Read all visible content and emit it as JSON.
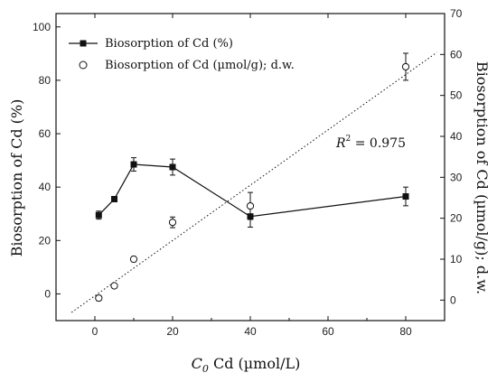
{
  "chart_data": {
    "type": "line",
    "xlabel_italic": "C",
    "xlabel_sub": "0",
    "xlabel_rest": " Cd (µmol/L)",
    "ylabel_left": "Biosorption of Cd (%)",
    "ylabel_right": "Biosorption of Cd (µmol/g); d.w.",
    "xlim": [
      -10,
      90
    ],
    "ylim_left": [
      -10,
      105
    ],
    "ylim_right": [
      -5,
      70
    ],
    "xticks": [
      0,
      20,
      40,
      60,
      80
    ],
    "yticks_left": [
      0,
      20,
      40,
      60,
      80,
      100
    ],
    "yticks_right": [
      0,
      10,
      20,
      30,
      40,
      50,
      60,
      70
    ],
    "legend_position": "top-left",
    "series": [
      {
        "name": "Biosorption of Cd (%)",
        "axis": "left",
        "marker": "filled-square",
        "connected": true,
        "x": [
          1,
          5,
          10,
          20,
          40,
          80
        ],
        "y": [
          29.5,
          35.5,
          48.5,
          47.5,
          29,
          36.5
        ],
        "err": [
          1.5,
          1,
          2.5,
          3,
          4,
          3.5
        ]
      },
      {
        "name": "Biosorption of Cd (µmol/g); d.w.",
        "axis": "right",
        "marker": "open-circle",
        "connected": false,
        "x": [
          1,
          5,
          10,
          20,
          40,
          80
        ],
        "y": [
          0.5,
          3.5,
          10,
          19,
          23,
          57
        ],
        "err": [
          0.6,
          0.5,
          0.6,
          1.3,
          3.3,
          3.3
        ]
      }
    ],
    "trendline": {
      "axis": "right",
      "style": "dotted",
      "x": [
        -6,
        88
      ],
      "y": [
        -3,
        60.5
      ],
      "label_main": "R",
      "label_sup": "2",
      "label_rest": " = 0.975"
    }
  }
}
